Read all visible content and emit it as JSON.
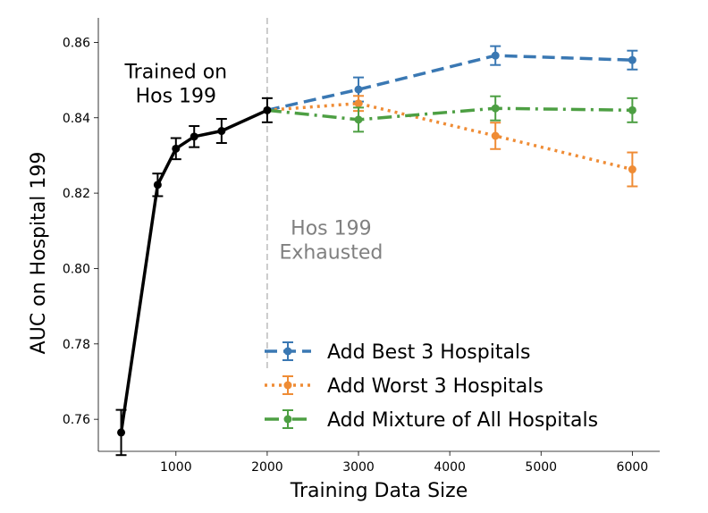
{
  "chart_data": {
    "type": "line",
    "xlabel": "Training Data Size",
    "ylabel": "AUC on Hospital 199",
    "xlim": [
      150,
      6300
    ],
    "ylim": [
      0.7515,
      0.8665
    ],
    "xticks": [
      1000,
      2000,
      3000,
      4000,
      5000,
      6000
    ],
    "xtick_labels": [
      "1000",
      "2000",
      "3000",
      "4000",
      "5000",
      "6000"
    ],
    "yticks": [
      0.76,
      0.78,
      0.8,
      0.82,
      0.84,
      0.86
    ],
    "ytick_labels": [
      "0.76",
      "0.78",
      "0.80",
      "0.82",
      "0.84",
      "0.86"
    ],
    "grid": false,
    "legend_position": "lower-right",
    "vline": {
      "x": 2000,
      "color": "#bbbbbb",
      "style": "dashed"
    },
    "annotations": [
      {
        "lines": [
          "Trained on",
          "Hos 199"
        ],
        "x": 1000,
        "y": 0.8505,
        "color": "#000000"
      },
      {
        "lines": [
          "Hos 199",
          "Exhausted"
        ],
        "x": 2700,
        "y": 0.809,
        "color": "#808080"
      }
    ],
    "base_series": {
      "color": "#000000",
      "x": [
        400,
        800,
        1000,
        1200,
        1500,
        2000
      ],
      "y": [
        0.7565,
        0.8222,
        0.8318,
        0.835,
        0.8365,
        0.842
      ],
      "err": [
        0.006,
        0.003,
        0.0028,
        0.0028,
        0.0032,
        0.0032
      ]
    },
    "series": [
      {
        "name": "Add Best 3 Hospitals",
        "color": "#3a78b3",
        "dash": "14 7",
        "x": [
          2000,
          3000,
          4500,
          6000
        ],
        "y": [
          0.842,
          0.8475,
          0.8565,
          0.8553
        ],
        "err": [
          0.0032,
          0.0032,
          0.0025,
          0.0025
        ]
      },
      {
        "name": "Add Worst 3 Hospitals",
        "color": "#ef8c35",
        "dash": "3 5",
        "x": [
          2000,
          3000,
          4500,
          6000
        ],
        "y": [
          0.842,
          0.8438,
          0.8352,
          0.8263
        ],
        "err": [
          0.0032,
          0.002,
          0.0035,
          0.0045
        ]
      },
      {
        "name": "Add Mixture of All Hospitals",
        "color": "#4d9f43",
        "dash": "16 6 3 6",
        "x": [
          2000,
          3000,
          4500,
          6000
        ],
        "y": [
          0.842,
          0.8395,
          0.8425,
          0.842
        ],
        "err": [
          0.0032,
          0.0032,
          0.0032,
          0.0032
        ]
      }
    ]
  }
}
